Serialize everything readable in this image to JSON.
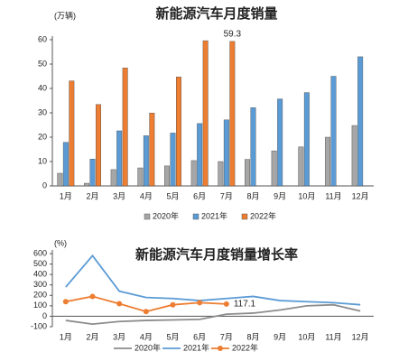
{
  "chart_data": [
    {
      "type": "bar",
      "title": "新能源汽车月度销量",
      "y_label": "(万辆)",
      "categories": [
        "1月",
        "2月",
        "3月",
        "4月",
        "5月",
        "6月",
        "7月",
        "8月",
        "9月",
        "10月",
        "11月",
        "12月"
      ],
      "series": [
        {
          "name": "2020年",
          "color": "#a6a6a6",
          "values": [
            5.2,
            1.1,
            6.7,
            7.4,
            8.2,
            10.4,
            10,
            10.9,
            14.4,
            16,
            20,
            24.8
          ]
        },
        {
          "name": "2021年",
          "color": "#5b9bd5",
          "values": [
            17.9,
            11,
            22.6,
            20.6,
            21.7,
            25.6,
            27.1,
            32.1,
            35.7,
            38.3,
            45,
            53
          ]
        },
        {
          "name": "2022年",
          "color": "#ed7d31",
          "values": [
            43.1,
            33.4,
            48.4,
            29.9,
            44.7,
            59.6,
            59.3,
            null,
            null,
            null,
            null,
            null
          ]
        }
      ],
      "labeled_point": [
        2,
        6
      ],
      "ylim": [
        0,
        60
      ],
      "yticks": [
        0,
        10,
        20,
        30,
        40,
        50,
        60
      ],
      "legend": "bottom"
    },
    {
      "type": "line",
      "title": "新能源汽车月度销量增长率",
      "y_label": "(%)",
      "categories": [
        "1月",
        "2月",
        "3月",
        "4月",
        "5月",
        "6月",
        "7月",
        "8月",
        "9月",
        "10月",
        "11月",
        "12月"
      ],
      "series": [
        {
          "name": "2020年",
          "color": "#8c8c8c",
          "values": [
            -40,
            -75,
            -50,
            -40,
            -35,
            -30,
            20,
            30,
            60,
            100,
            110,
            50
          ]
        },
        {
          "name": "2021年",
          "color": "#5b9bd5",
          "values": [
            280,
            580,
            240,
            180,
            170,
            150,
            170,
            190,
            150,
            140,
            130,
            110
          ]
        },
        {
          "name": "2022年",
          "color": "#ed7d31",
          "markers": true,
          "values": [
            140,
            190,
            120,
            45,
            110,
            130,
            117.1,
            null,
            null,
            null,
            null,
            null
          ]
        }
      ],
      "labeled_point": [
        2,
        6
      ],
      "ylim": [
        -100,
        600
      ],
      "yticks": [
        -100,
        0,
        100,
        200,
        300,
        400,
        500,
        600
      ],
      "legend": "bottom"
    }
  ]
}
